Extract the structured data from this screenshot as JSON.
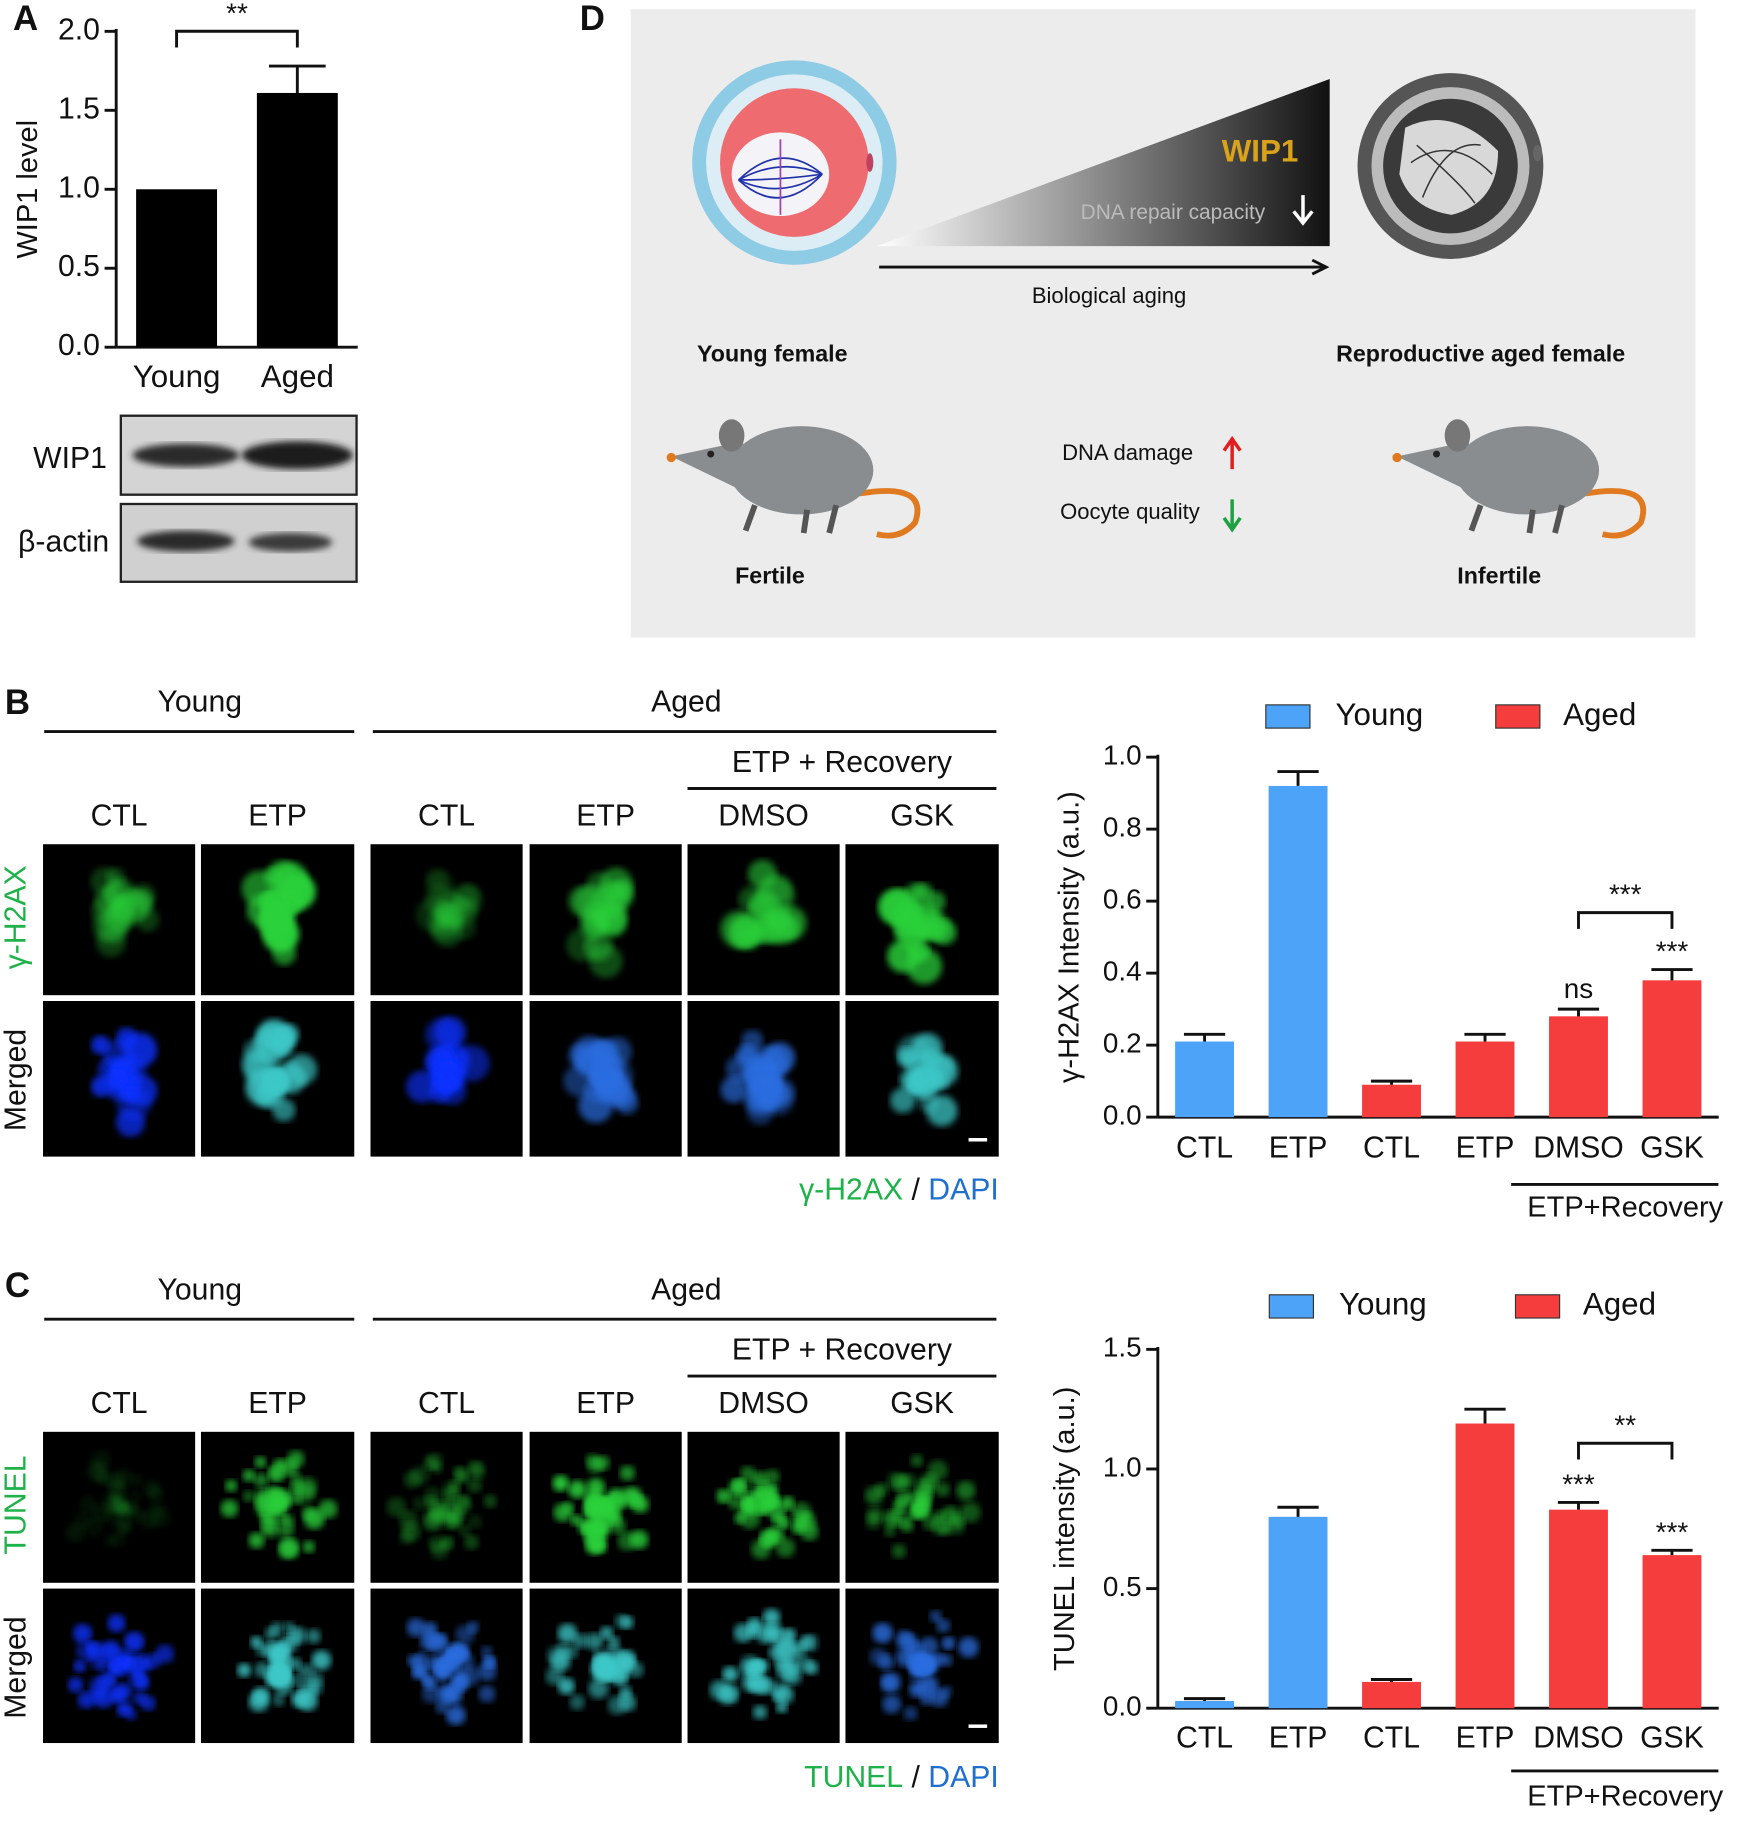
{
  "panel_labels": [
    "A",
    "B",
    "C",
    "D"
  ],
  "blot": {
    "rows": [
      "WIP1",
      "β-actin"
    ]
  },
  "chart_data": [
    {
      "type": "bar",
      "ylabel": "WIP1 level",
      "categories": [
        "Young",
        "Aged"
      ],
      "values": [
        1.0,
        1.61
      ],
      "errors": [
        null,
        0.17
      ],
      "color": "#000000",
      "ylim": [
        0,
        2.0
      ],
      "yticks": [
        {
          "value": 0,
          "label": "0.0"
        },
        0.5,
        {
          "value": 1,
          "label": "1.0"
        },
        1.5,
        {
          "value": 2,
          "label": "2.0"
        }
      ],
      "brackets": [
        {
          "text": "**",
          "between": [
            0,
            1
          ]
        }
      ]
    },
    {
      "type": "bar",
      "ylabel": "γ-H2AX Intensity (a.u.)",
      "categories": [
        "CTL",
        "ETP",
        "CTL",
        "ETP",
        "DMSO",
        "GSK"
      ],
      "series": [
        {
          "name": "Young",
          "color": "#4da3f7",
          "values": [
            0.21,
            0.92,
            null,
            null,
            null,
            null
          ],
          "errors": [
            0.02,
            0.04,
            null,
            null,
            null,
            null
          ]
        },
        {
          "name": "Aged",
          "color": "#f63d3d",
          "values": [
            null,
            null,
            0.09,
            0.21,
            0.28,
            0.38
          ],
          "errors": [
            null,
            null,
            0.01,
            0.02,
            0.02,
            0.03
          ]
        }
      ],
      "ylim": [
        0,
        1.0
      ],
      "yticks": [
        {
          "value": 0,
          "label": "0.0"
        },
        0.2,
        0.4,
        0.6,
        0.8,
        {
          "value": 1,
          "label": "1.0"
        }
      ],
      "legend": "top",
      "annotations": [
        {
          "text": "ns",
          "at": 4
        },
        {
          "text": "***",
          "at": 5
        }
      ],
      "brackets": [
        {
          "text": "***",
          "between": [
            4,
            5
          ]
        }
      ],
      "category_group": {
        "label": "ETP+Recovery",
        "span": [
          4,
          5
        ]
      }
    },
    {
      "type": "bar",
      "ylabel": "TUNEL intensity (a.u.)",
      "categories": [
        "CTL",
        "ETP",
        "CTL",
        "ETP",
        "DMSO",
        "GSK"
      ],
      "series": [
        {
          "name": "Young",
          "color": "#4da3f7",
          "values": [
            0.03,
            0.8,
            null,
            null,
            null,
            null
          ],
          "errors": [
            0.01,
            0.04,
            null,
            null,
            null,
            null
          ]
        },
        {
          "name": "Aged",
          "color": "#f63d3d",
          "values": [
            null,
            null,
            0.11,
            1.19,
            0.83,
            0.64
          ],
          "errors": [
            null,
            null,
            0.01,
            0.06,
            0.03,
            0.02
          ]
        }
      ],
      "ylim": [
        0,
        1.5
      ],
      "yticks": [
        {
          "value": 0,
          "label": "0.0"
        },
        0.5,
        {
          "value": 1,
          "label": "1.0"
        },
        1.5
      ],
      "legend": "top",
      "annotations": [
        {
          "text": "***",
          "at": 4
        },
        {
          "text": "***",
          "at": 5
        }
      ],
      "brackets": [
        {
          "text": "**",
          "between": [
            4,
            5
          ]
        }
      ],
      "category_group": {
        "label": "ETP+Recovery",
        "span": [
          4,
          5
        ]
      }
    }
  ],
  "micrographs": [
    {
      "groups": [
        "Young",
        "Aged"
      ],
      "subgroup": "ETP + Recovery",
      "columns": [
        "CTL",
        "ETP",
        "CTL",
        "ETP",
        "DMSO",
        "GSK"
      ],
      "rows": [
        "γ-H2AX",
        "Merged"
      ],
      "caption": [
        "γ-H2AX",
        "/",
        "DAPI"
      ]
    },
    {
      "groups": [
        "Young",
        "Aged"
      ],
      "subgroup": "ETP + Recovery",
      "columns": [
        "CTL",
        "ETP",
        "CTL",
        "ETP",
        "DMSO",
        "GSK"
      ],
      "rows": [
        "TUNEL",
        "Merged"
      ],
      "caption": [
        "TUNEL",
        "/",
        "DAPI"
      ]
    }
  ],
  "diagram": {
    "gene": "WIP1",
    "capacity": "DNA repair capacity",
    "axis": "Biological aging",
    "left_title": "Young female",
    "right_title": "Reproductive aged female",
    "effects": [
      "DNA damage",
      "Oocyte quality"
    ],
    "left_status": "Fertile",
    "right_status": "Infertile"
  }
}
